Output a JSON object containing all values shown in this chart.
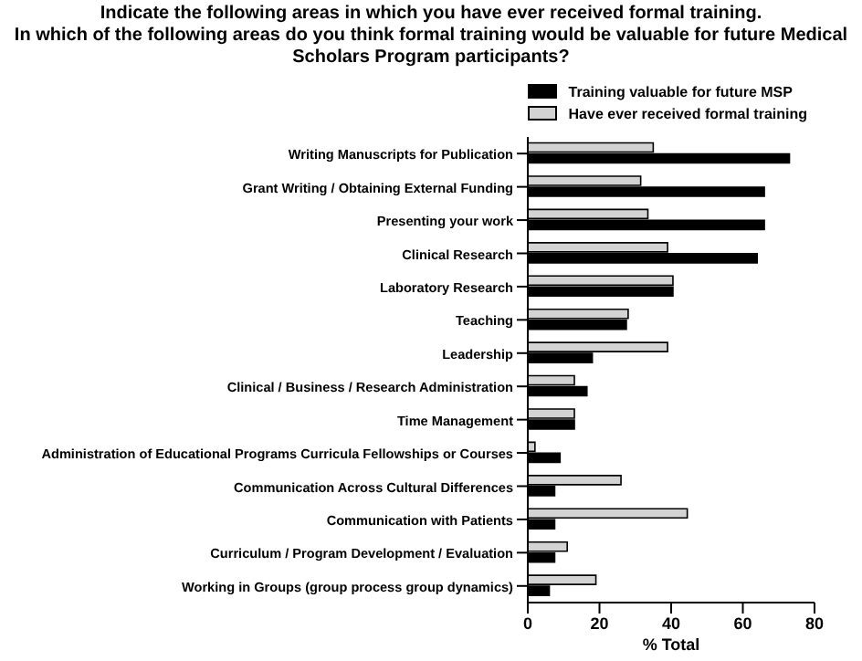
{
  "chart_data": {
    "type": "bar",
    "orientation": "horizontal",
    "title": "Indicate the following areas in which you have ever received formal training.\nIn which of the following areas do you think formal training would be valuable for future Medical Scholars Program participants?",
    "xlabel": "% Total",
    "categories": [
      "Writing Manuscripts for Publication",
      "Grant Writing / Obtaining External Funding",
      "Presenting your work",
      "Clinical Research",
      "Laboratory Research",
      "Teaching",
      "Leadership",
      "Clinical / Business / Research Administration",
      "Time Management",
      "Administration of Educational Programs Curricula Fellowships or Courses",
      "Communication Across Cultural Differences",
      "Communication with Patients",
      "Curriculum / Program Development / Evaluation",
      "Working in Groups (group process group dynamics)"
    ],
    "series": [
      {
        "name": "Have ever received formal training",
        "color": "#d3d3d3",
        "values": [
          35,
          31.5,
          33.5,
          39,
          40.5,
          28,
          39,
          13,
          13,
          2,
          26,
          44.5,
          11,
          19
        ]
      },
      {
        "name": "Training valuable for future MSP",
        "color": "#000000",
        "values": [
          73,
          66,
          66,
          64,
          40.5,
          27.5,
          18,
          16.5,
          13,
          9,
          7.5,
          7.5,
          7.5,
          6
        ]
      }
    ],
    "xlim": [
      0,
      80
    ],
    "xticks": [
      0,
      20,
      40,
      60,
      80
    ],
    "legend": "top right"
  }
}
